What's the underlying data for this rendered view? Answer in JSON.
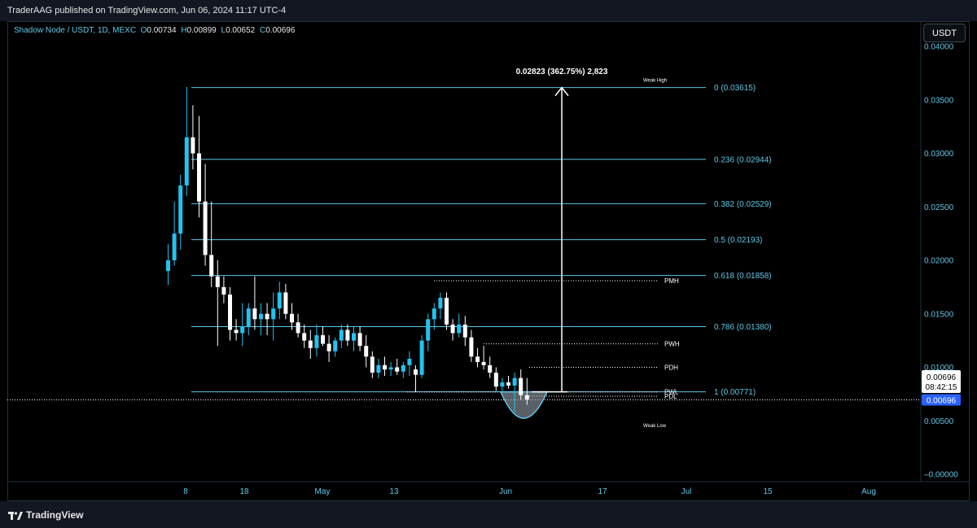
{
  "publisher_line": "TraderAAG published on TradingView.com, Jun 06, 2024 11:17 UTC-4",
  "header": {
    "symbol": "Shadow Node / USDT, 1D, MEXC",
    "o_label": "O",
    "o_value": "0.00734",
    "h_label": "H",
    "h_value": "0.00899",
    "l_label": "L",
    "l_value": "0.00652",
    "c_label": "C",
    "c_value": "0.00696"
  },
  "currency_button": "USDT",
  "footer_brand": "TradingView",
  "colors": {
    "up": "#20c4f0",
    "down": "#ffffff",
    "fib": "#5ec8e8",
    "background": "#000000"
  },
  "chart_data": {
    "type": "candlestick",
    "y_axis_ticks": [
      "0.04000",
      "0.03500",
      "0.03000",
      "0.02500",
      "0.02000",
      "0.01500",
      "0.01000",
      "0.00500",
      "–0.00000"
    ],
    "x_axis_ticks": [
      "8",
      "18",
      "May",
      "13",
      "Jun",
      "17",
      "Jul",
      "15",
      "Aug"
    ],
    "ylim": [
      0.0,
      0.04
    ],
    "last_price": "0.00696",
    "countdown": "08:42:15",
    "price_line_label": "0.00696",
    "fib_levels": [
      {
        "label": "0 (0.03615)",
        "value": 0.03615
      },
      {
        "label": "0.236 (0.02944)",
        "value": 0.02944
      },
      {
        "label": "0.382 (0.02529)",
        "value": 0.02529
      },
      {
        "label": "0.5 (0.02193)",
        "value": 0.02193
      },
      {
        "label": "0.618 (0.01858)",
        "value": 0.01858
      },
      {
        "label": "0.786 (0.01380)",
        "value": 0.0138
      },
      {
        "label": "1 (0.00771)",
        "value": 0.00771
      }
    ],
    "measure_label": "0.02823 (362.75%) 2,823",
    "levels": [
      {
        "label": "PMH",
        "value": 0.0181
      },
      {
        "label": "PWH",
        "value": 0.0122
      },
      {
        "label": "PDH",
        "value": 0.01
      },
      {
        "label": "PWL",
        "value": 0.0077
      },
      {
        "label": "PDL",
        "value": 0.0073
      }
    ],
    "weak_high_label": "Weak High",
    "weak_low_label": "Weak Low",
    "candles": [
      {
        "o": 0.019,
        "h": 0.0215,
        "l": 0.0177,
        "c": 0.02
      },
      {
        "o": 0.02,
        "h": 0.0255,
        "l": 0.0195,
        "c": 0.0225
      },
      {
        "o": 0.0225,
        "h": 0.028,
        "l": 0.021,
        "c": 0.027
      },
      {
        "o": 0.027,
        "h": 0.0362,
        "l": 0.026,
        "c": 0.0315
      },
      {
        "o": 0.0315,
        "h": 0.0345,
        "l": 0.0285,
        "c": 0.03
      },
      {
        "o": 0.03,
        "h": 0.0335,
        "l": 0.024,
        "c": 0.0255
      },
      {
        "o": 0.0255,
        "h": 0.029,
        "l": 0.0195,
        "c": 0.0205
      },
      {
        "o": 0.0205,
        "h": 0.0255,
        "l": 0.0175,
        "c": 0.0185
      },
      {
        "o": 0.0185,
        "h": 0.02,
        "l": 0.012,
        "c": 0.0175
      },
      {
        "o": 0.0175,
        "h": 0.0185,
        "l": 0.016,
        "c": 0.0168
      },
      {
        "o": 0.0168,
        "h": 0.0175,
        "l": 0.0125,
        "c": 0.0135
      },
      {
        "o": 0.0135,
        "h": 0.0145,
        "l": 0.0125,
        "c": 0.0132
      },
      {
        "o": 0.0132,
        "h": 0.016,
        "l": 0.012,
        "c": 0.0138
      },
      {
        "o": 0.0138,
        "h": 0.016,
        "l": 0.013,
        "c": 0.0155
      },
      {
        "o": 0.0155,
        "h": 0.0185,
        "l": 0.0135,
        "c": 0.0145
      },
      {
        "o": 0.0145,
        "h": 0.016,
        "l": 0.013,
        "c": 0.015
      },
      {
        "o": 0.015,
        "h": 0.016,
        "l": 0.013,
        "c": 0.0145
      },
      {
        "o": 0.0145,
        "h": 0.017,
        "l": 0.0125,
        "c": 0.0155
      },
      {
        "o": 0.0155,
        "h": 0.018,
        "l": 0.0145,
        "c": 0.017
      },
      {
        "o": 0.017,
        "h": 0.0178,
        "l": 0.0145,
        "c": 0.015
      },
      {
        "o": 0.015,
        "h": 0.016,
        "l": 0.0135,
        "c": 0.0142
      },
      {
        "o": 0.0142,
        "h": 0.015,
        "l": 0.0128,
        "c": 0.0132
      },
      {
        "o": 0.0132,
        "h": 0.014,
        "l": 0.0118,
        "c": 0.0125
      },
      {
        "o": 0.0125,
        "h": 0.0135,
        "l": 0.0108,
        "c": 0.0118
      },
      {
        "o": 0.0118,
        "h": 0.014,
        "l": 0.011,
        "c": 0.013
      },
      {
        "o": 0.013,
        "h": 0.0138,
        "l": 0.012,
        "c": 0.0122
      },
      {
        "o": 0.0122,
        "h": 0.013,
        "l": 0.0105,
        "c": 0.0115
      },
      {
        "o": 0.0115,
        "h": 0.0128,
        "l": 0.011,
        "c": 0.0125
      },
      {
        "o": 0.0125,
        "h": 0.014,
        "l": 0.0118,
        "c": 0.0135
      },
      {
        "o": 0.0135,
        "h": 0.014,
        "l": 0.012,
        "c": 0.0125
      },
      {
        "o": 0.0125,
        "h": 0.0138,
        "l": 0.0115,
        "c": 0.0132
      },
      {
        "o": 0.0132,
        "h": 0.0138,
        "l": 0.0115,
        "c": 0.012
      },
      {
        "o": 0.012,
        "h": 0.013,
        "l": 0.01,
        "c": 0.011
      },
      {
        "o": 0.011,
        "h": 0.0115,
        "l": 0.009,
        "c": 0.0095
      },
      {
        "o": 0.0095,
        "h": 0.0108,
        "l": 0.009,
        "c": 0.0102
      },
      {
        "o": 0.0102,
        "h": 0.011,
        "l": 0.0092,
        "c": 0.0098
      },
      {
        "o": 0.0098,
        "h": 0.0105,
        "l": 0.0092,
        "c": 0.01
      },
      {
        "o": 0.01,
        "h": 0.0108,
        "l": 0.0093,
        "c": 0.0096
      },
      {
        "o": 0.0096,
        "h": 0.0105,
        "l": 0.009,
        "c": 0.0102
      },
      {
        "o": 0.0102,
        "h": 0.0115,
        "l": 0.0092,
        "c": 0.0108
      },
      {
        "o": 0.0098,
        "h": 0.0102,
        "l": 0.0077,
        "c": 0.0093
      },
      {
        "o": 0.0093,
        "h": 0.013,
        "l": 0.009,
        "c": 0.0125
      },
      {
        "o": 0.0125,
        "h": 0.015,
        "l": 0.0115,
        "c": 0.0145
      },
      {
        "o": 0.0145,
        "h": 0.016,
        "l": 0.0135,
        "c": 0.0155
      },
      {
        "o": 0.0155,
        "h": 0.017,
        "l": 0.0145,
        "c": 0.0165
      },
      {
        "o": 0.0165,
        "h": 0.017,
        "l": 0.0135,
        "c": 0.014
      },
      {
        "o": 0.014,
        "h": 0.0145,
        "l": 0.0125,
        "c": 0.0132
      },
      {
        "o": 0.0132,
        "h": 0.015,
        "l": 0.0128,
        "c": 0.014
      },
      {
        "o": 0.014,
        "h": 0.0148,
        "l": 0.012,
        "c": 0.0128
      },
      {
        "o": 0.0128,
        "h": 0.0135,
        "l": 0.0105,
        "c": 0.011
      },
      {
        "o": 0.011,
        "h": 0.0118,
        "l": 0.01,
        "c": 0.0105
      },
      {
        "o": 0.0105,
        "h": 0.012,
        "l": 0.0098,
        "c": 0.0102
      },
      {
        "o": 0.0102,
        "h": 0.011,
        "l": 0.009,
        "c": 0.0095
      },
      {
        "o": 0.0095,
        "h": 0.01,
        "l": 0.0078,
        "c": 0.0082
      },
      {
        "o": 0.0082,
        "h": 0.009,
        "l": 0.0078,
        "c": 0.0086
      },
      {
        "o": 0.0086,
        "h": 0.0092,
        "l": 0.008,
        "c": 0.0083
      },
      {
        "o": 0.0083,
        "h": 0.0095,
        "l": 0.0058,
        "c": 0.009
      },
      {
        "o": 0.009,
        "h": 0.0098,
        "l": 0.007,
        "c": 0.0074
      },
      {
        "o": 0.0074,
        "h": 0.009,
        "l": 0.0065,
        "c": 0.007
      }
    ]
  }
}
